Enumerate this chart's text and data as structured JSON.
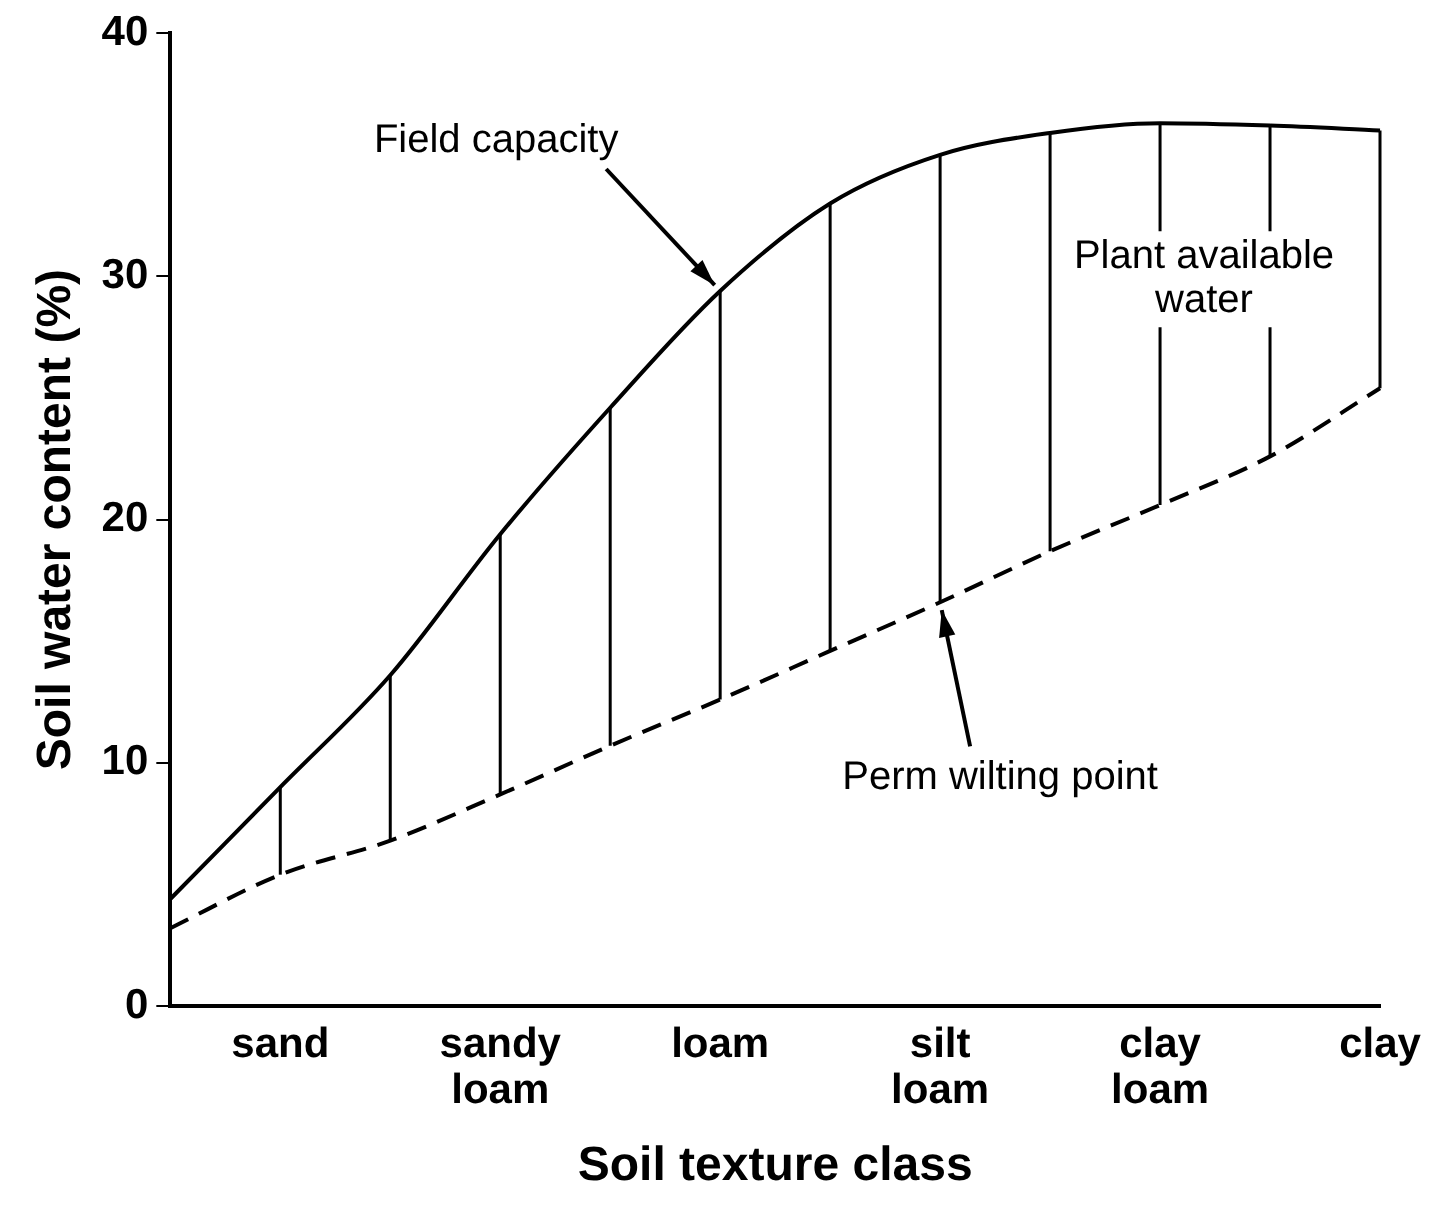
{
  "chart_data": {
    "type": "line",
    "xlabel": "Soil texture class",
    "ylabel": "Soil water content (%)",
    "categories": [
      null,
      "sand",
      null,
      "sandy loam",
      null,
      "loam",
      null,
      "silt loam",
      null,
      "clay loam",
      null,
      "clay"
    ],
    "ylim": [
      0,
      40
    ],
    "yticks": [
      0,
      10,
      20,
      30,
      40
    ],
    "grid": false,
    "legend": false,
    "marker": "none",
    "series": [
      {
        "color": "#000000",
        "line_style": "solid",
        "values": [
          4.4,
          9.0,
          13.6,
          19.4,
          24.6,
          29.4,
          33.0,
          35.0,
          35.9,
          36.3,
          36.2,
          36.0
        ],
        "errors": [
          null,
          [
            5.4,
            9.0
          ],
          [
            6.8,
            13.6
          ],
          [
            8.7,
            19.4
          ],
          [
            10.7,
            24.6
          ],
          [
            12.6,
            29.4
          ],
          [
            14.6,
            33.0
          ],
          [
            16.6,
            35.0
          ],
          [
            18.7,
            35.9
          ],
          [
            20.6,
            36.3
          ],
          [
            22.6,
            36.2
          ],
          [
            25.4,
            36.0
          ]
        ]
      },
      {
        "color": "#000000",
        "line_style": "dashed",
        "values": [
          3.2,
          5.4,
          6.8,
          8.7,
          10.7,
          12.6,
          14.6,
          16.6,
          18.7,
          20.6,
          22.6,
          25.4
        ]
      }
    ],
    "annotations": [
      {
        "text": "Field capacity",
        "x": "loam",
        "y": 29.4
      },
      {
        "text": "Perm wilting point",
        "x": "silt loam",
        "y": 16.6
      },
      "Plant available water"
    ]
  }
}
